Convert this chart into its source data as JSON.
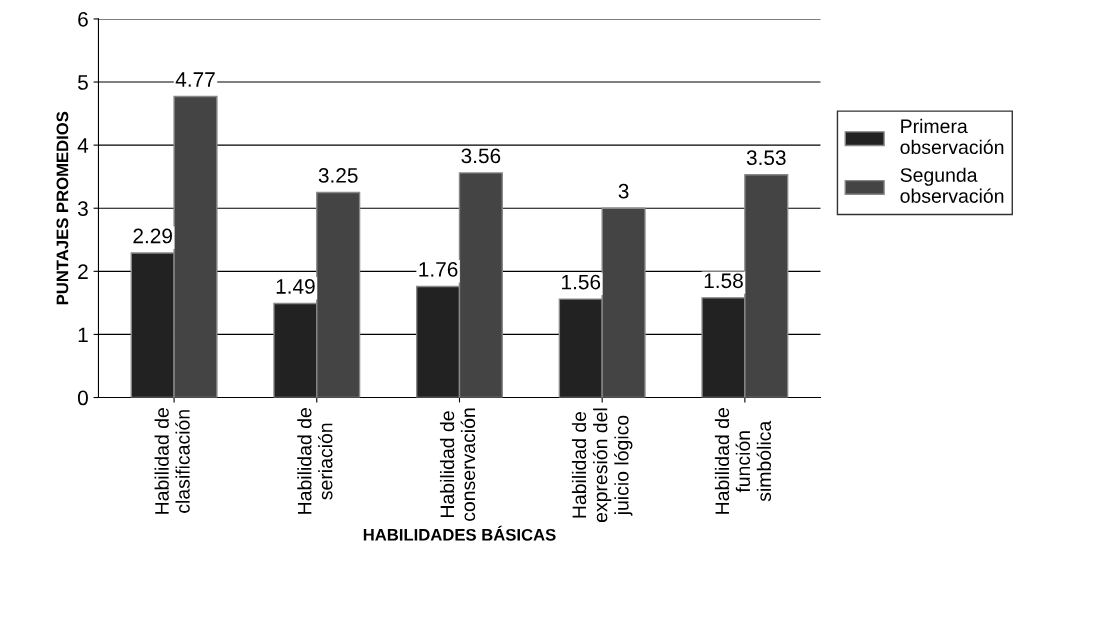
{
  "chart_data": {
    "type": "bar",
    "xlabel": "HABILIDADES BÁSICAS",
    "ylabel": "PUNTAJES PROMEDIOS",
    "categories": [
      "Habilidad de\nclasificación",
      "Habilidad de\nseriación",
      "Habilidad de\nconservación",
      "Habilidad de\nexpresión del\njuicio lógico",
      "Habilidad de\nfunción\nsimbólica"
    ],
    "series": [
      {
        "name": "Primera\nobservación",
        "color": "#222222",
        "values": [
          2.29,
          1.49,
          1.76,
          1.56,
          1.58
        ]
      },
      {
        "name": "Segunda\nobservación",
        "color": "#444444",
        "values": [
          4.77,
          3.25,
          3.56,
          3,
          3.53
        ]
      }
    ],
    "ylim": [
      0,
      6
    ],
    "yticks": [
      0,
      1,
      2,
      3,
      4,
      5,
      6
    ],
    "grid": "y",
    "legend": "right",
    "data_labels": true
  }
}
